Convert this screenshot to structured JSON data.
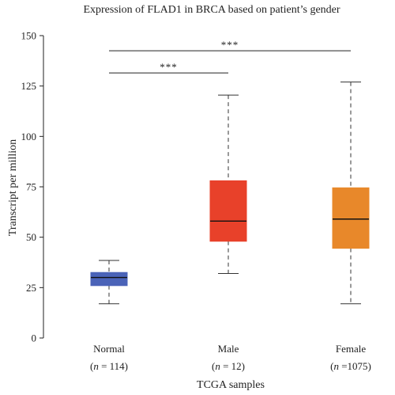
{
  "chart_data": {
    "type": "box",
    "title": "Expression of FLAD1 in BRCA based on patient’s gender",
    "xlabel": "TCGA samples",
    "ylabel": "Transcript per million",
    "ylim": [
      0,
      150
    ],
    "yticks": [
      0,
      25,
      50,
      75,
      100,
      125,
      150
    ],
    "categories": [
      {
        "name": "Normal",
        "n_label": "n",
        "n_value": "= 114)",
        "n_prefix": "(",
        "color": "#4a63b8"
      },
      {
        "name": "Male",
        "n_label": "n",
        "n_value": "= 12)",
        "n_prefix": "(",
        "color": "#e8412a"
      },
      {
        "name": "Female",
        "n_label": "n",
        "n_value": "=1075)",
        "n_prefix": "(",
        "color": "#e8882a"
      }
    ],
    "boxes": [
      {
        "category": "Normal",
        "min": 17,
        "q1": 26,
        "median": 30,
        "q3": 32.5,
        "max": 38.5
      },
      {
        "category": "Male",
        "min": 32,
        "q1": 48,
        "median": 58,
        "q3": 78,
        "max": 120.5
      },
      {
        "category": "Female",
        "min": 17,
        "q1": 44.5,
        "median": 59,
        "q3": 74.5,
        "max": 127
      }
    ],
    "significance": [
      {
        "from": "Normal",
        "to": "Male",
        "y": 131.5,
        "label": "***"
      },
      {
        "from": "Normal",
        "to": "Female",
        "y": 142.5,
        "label": "***"
      }
    ]
  }
}
